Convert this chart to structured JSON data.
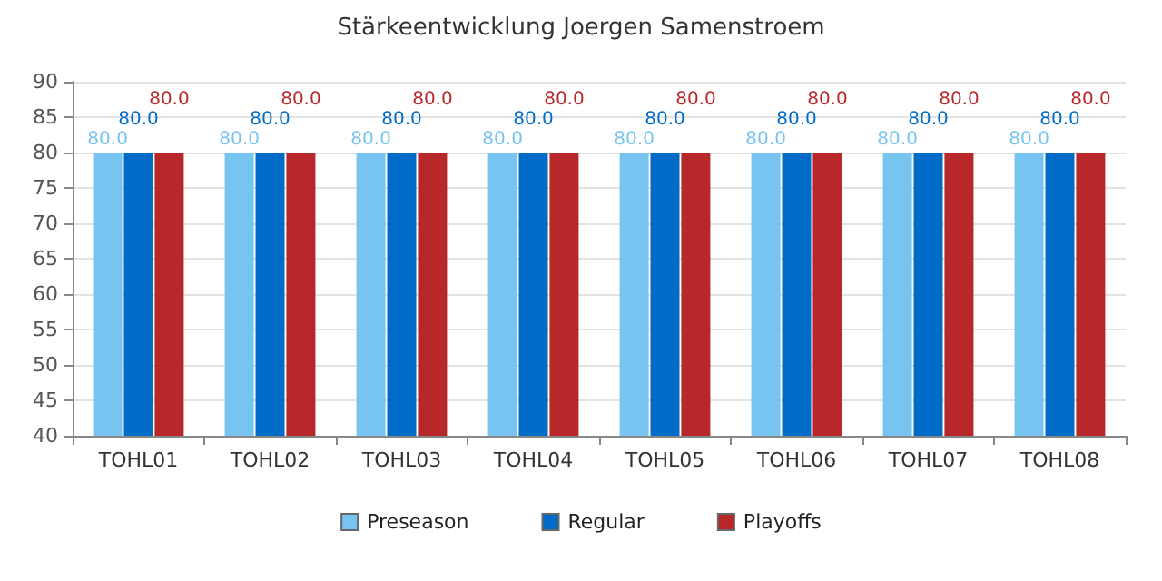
{
  "chart_data": {
    "type": "bar",
    "title": "Stärkeentwicklung Joergen Samenstroem",
    "categories": [
      "TOHL01",
      "TOHL02",
      "TOHL03",
      "TOHL04",
      "TOHL05",
      "TOHL06",
      "TOHL07",
      "TOHL08"
    ],
    "series": [
      {
        "name": "Preseason",
        "color": "#77c4f0",
        "values": [
          80,
          80,
          80,
          80,
          80,
          80,
          80,
          80
        ],
        "value_labels": [
          "80.0",
          "80.0",
          "80.0",
          "80.0",
          "80.0",
          "80.0",
          "80.0",
          "80.0"
        ]
      },
      {
        "name": "Regular",
        "color": "#006cc8",
        "values": [
          80,
          80,
          80,
          80,
          80,
          80,
          80,
          80
        ],
        "value_labels": [
          "80.0",
          "80.0",
          "80.0",
          "80.0",
          "80.0",
          "80.0",
          "80.0",
          "80.0"
        ]
      },
      {
        "name": "Playoffs",
        "color": "#b8282a",
        "values": [
          80,
          80,
          80,
          80,
          80,
          80,
          80,
          80
        ],
        "value_labels": [
          "80.0",
          "80.0",
          "80.0",
          "80.0",
          "80.0",
          "80.0",
          "80.0",
          "80.0"
        ]
      }
    ],
    "ylim": [
      40,
      90
    ],
    "yticks": [
      40,
      45,
      50,
      55,
      60,
      65,
      70,
      75,
      80,
      85,
      90
    ],
    "grid": "y",
    "legend": "bottom"
  }
}
